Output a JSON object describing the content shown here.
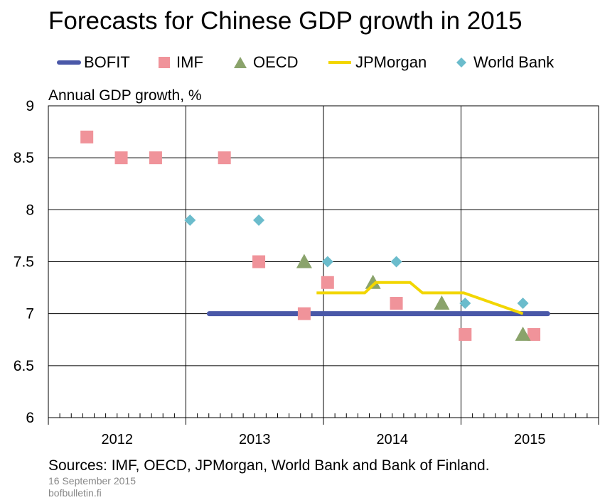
{
  "chart_data": {
    "type": "line",
    "title": "Forecasts for Chinese GDP growth in 2015",
    "ylabel": "Annual  GDP growth, %",
    "xlabel": "",
    "ylim": [
      6,
      9
    ],
    "yticks": [
      "9",
      "8.5",
      "8",
      "7.5",
      "7",
      "6.5",
      "6"
    ],
    "xlim": [
      2012,
      2016
    ],
    "xticks": [
      "2012",
      "2013",
      "2014",
      "2015"
    ],
    "grid": true,
    "legend_position": "top",
    "series": [
      {
        "name": "BOFIT",
        "kind": "line",
        "color": "#4a58a8",
        "points": [
          [
            2013.17,
            7.0
          ],
          [
            2015.63,
            7.0
          ]
        ]
      },
      {
        "name": "IMF",
        "kind": "square",
        "color": "#f0939a",
        "points": [
          [
            2012.28,
            8.7
          ],
          [
            2012.53,
            8.5
          ],
          [
            2012.78,
            8.5
          ],
          [
            2013.28,
            8.5
          ],
          [
            2013.53,
            7.5
          ],
          [
            2013.86,
            7.0
          ],
          [
            2014.03,
            7.3
          ],
          [
            2014.53,
            7.1
          ],
          [
            2015.03,
            6.8
          ],
          [
            2015.53,
            6.8
          ]
        ]
      },
      {
        "name": "OECD",
        "kind": "triangle",
        "color": "#8aa36b",
        "points": [
          [
            2013.86,
            7.5
          ],
          [
            2014.36,
            7.3
          ],
          [
            2014.86,
            7.1
          ],
          [
            2015.45,
            6.8
          ]
        ]
      },
      {
        "name": "JPMorgan",
        "kind": "line",
        "color": "#f2d600",
        "points": [
          [
            2013.95,
            7.2
          ],
          [
            2014.3,
            7.2
          ],
          [
            2014.38,
            7.3
          ],
          [
            2014.63,
            7.3
          ],
          [
            2014.72,
            7.2
          ],
          [
            2015.02,
            7.2
          ],
          [
            2015.45,
            7.0
          ]
        ]
      },
      {
        "name": "World Bank",
        "kind": "diamond",
        "color": "#6bbccc",
        "points": [
          [
            2013.03,
            7.9
          ],
          [
            2013.53,
            7.9
          ],
          [
            2014.03,
            7.5
          ],
          [
            2014.53,
            7.5
          ],
          [
            2015.03,
            7.1
          ],
          [
            2015.45,
            7.1
          ]
        ]
      }
    ]
  },
  "footer": {
    "sources": "Sources: IMF, OECD, JPMorgan, World Bank and Bank of Finland.",
    "date": "16 September 2015",
    "site": "bofbulletin.fi"
  }
}
